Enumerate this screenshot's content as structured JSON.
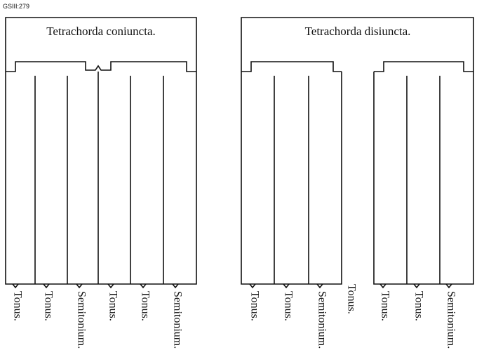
{
  "header": {
    "ref": "GSIII:279"
  },
  "diagrams": [
    {
      "title": "Tetrachorda coniuncta.",
      "labels": [
        "Tonus.",
        "Tonus.",
        "Semitonium.",
        "Tonus.",
        "Tonus.",
        "Semitonium."
      ]
    },
    {
      "title": "Tetrachorda disiuncta.",
      "labels": [
        "Tonus.",
        "Tonus.",
        "Semitonium.",
        "Tonus.",
        "Tonus.",
        "Tonus.",
        "Semitonium."
      ]
    }
  ]
}
